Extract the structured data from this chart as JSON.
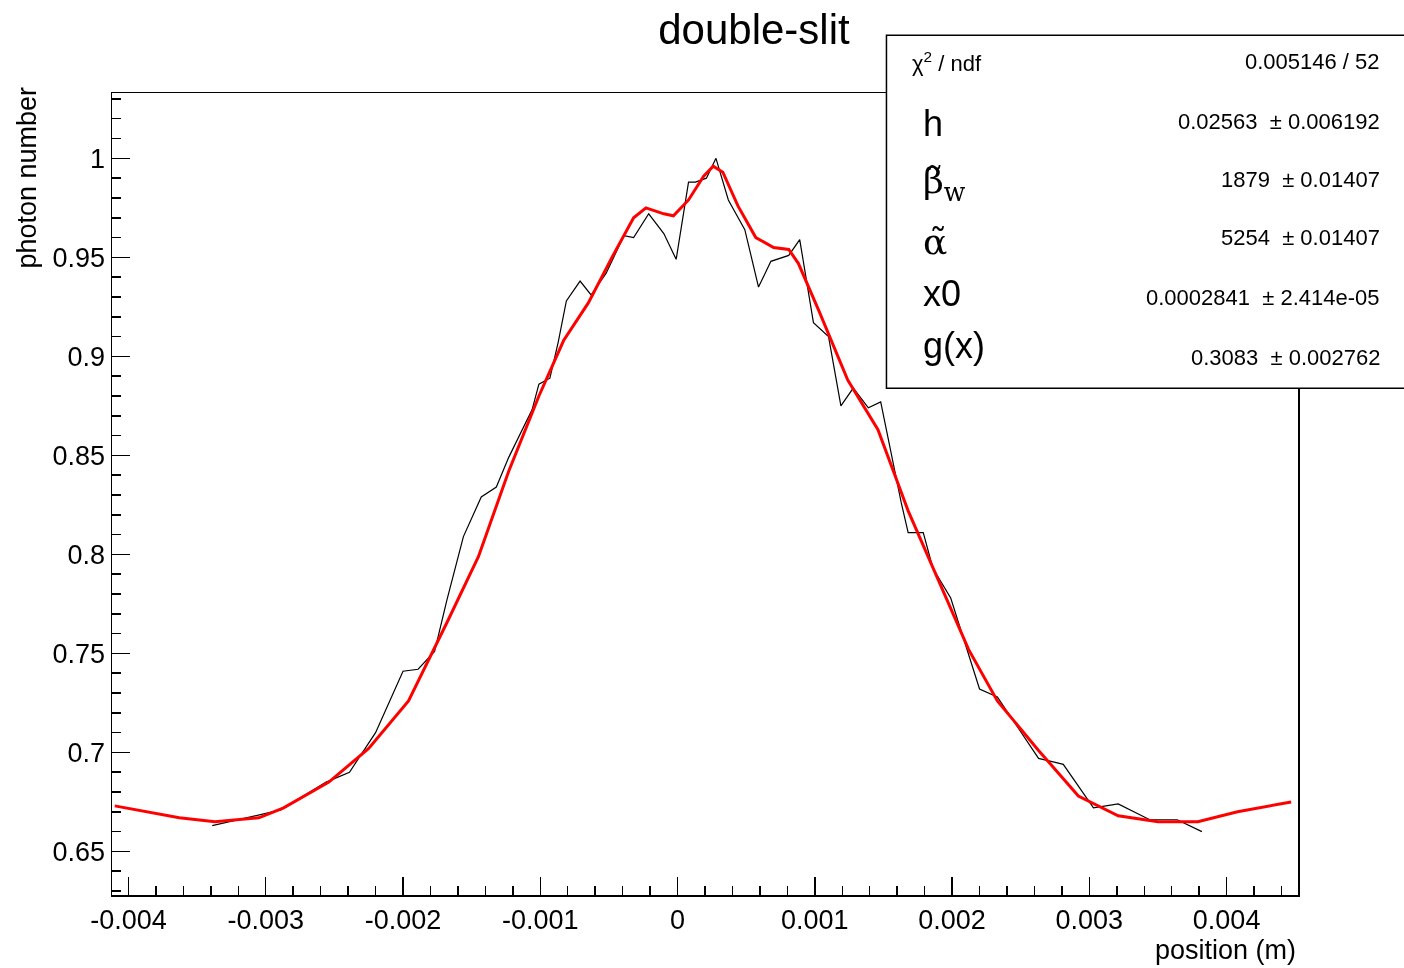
{
  "chart_data": {
    "type": "line",
    "title": "double-slit",
    "xlabel": "position (m)",
    "ylabel": "photon number",
    "xlim": [
      -0.00412,
      0.00452
    ],
    "xticks": [
      -0.004,
      -0.003,
      -0.002,
      -0.001,
      0,
      0.001,
      0.002,
      0.003,
      0.004
    ],
    "ylim": [
      0.628,
      1.033
    ],
    "yticks": [
      0.65,
      0.7,
      0.75,
      0.8,
      0.85,
      0.9,
      0.95,
      1
    ],
    "grid": false,
    "marker": "none",
    "line_style": "solid",
    "series": [
      {
        "color": "#000000",
        "x": [
          -0.00339,
          -0.00289,
          -0.00256,
          -0.00239,
          -0.0022,
          -0.002,
          -0.00189,
          -0.00177,
          -0.00168,
          -0.00156,
          -0.00143,
          -0.00132,
          -0.00123,
          -0.00106,
          -0.00101,
          -0.00093,
          -0.00087,
          -0.00081,
          -0.00071,
          -0.00063,
          -0.00052,
          -0.00039,
          -0.00032,
          -0.00021,
          -0.0001,
          -1e-05,
          8e-05,
          0.00013,
          0.00021,
          0.00028,
          0.00037,
          0.00049,
          0.00059,
          0.00068,
          0.00081,
          0.00089,
          0.00099,
          0.0011,
          0.00119,
          0.00128,
          0.00139,
          0.00148,
          0.00163,
          0.00168,
          0.00179,
          0.00186,
          0.00199,
          0.0022,
          0.00233,
          0.00263,
          0.00281,
          0.00303,
          0.00321,
          0.00344,
          0.00364,
          0.00382
        ],
        "values": [
          0.663,
          0.671,
          0.685,
          0.69,
          0.71,
          0.741,
          0.742,
          0.751,
          0.777,
          0.809,
          0.829,
          0.834,
          0.849,
          0.873,
          0.886,
          0.889,
          0.907,
          0.928,
          0.938,
          0.931,
          0.942,
          0.961,
          0.96,
          0.972,
          0.962,
          0.949,
          0.988,
          0.988,
          0.99,
          1.0,
          0.979,
          0.964,
          0.935,
          0.948,
          0.951,
          0.959,
          0.917,
          0.91,
          0.875,
          0.884,
          0.874,
          0.877,
          0.826,
          0.811,
          0.811,
          0.793,
          0.778,
          0.732,
          0.728,
          0.697,
          0.694,
          0.672,
          0.674,
          0.666,
          0.666,
          0.66
        ]
      },
      {
        "color": "#ff0000",
        "x": [
          -0.0041,
          -0.00363,
          -0.00337,
          -0.00305,
          -0.00287,
          -0.00254,
          -0.00225,
          -0.00196,
          -0.00167,
          -0.00145,
          -0.00123,
          -0.00101,
          -0.00083,
          -0.00065,
          -0.00047,
          -0.00032,
          -0.00023,
          -0.0001,
          -3e-05,
          8e-05,
          0.00019,
          0.00026,
          0.00033,
          0.00044,
          0.00057,
          0.0007,
          0.00081,
          0.00088,
          0.00103,
          0.00124,
          0.00146,
          0.00168,
          0.0019,
          0.00212,
          0.00233,
          0.00263,
          0.00292,
          0.00321,
          0.0035,
          0.00379,
          0.00408,
          0.00447
        ],
        "values": [
          0.673,
          0.667,
          0.665,
          0.667,
          0.672,
          0.685,
          0.702,
          0.726,
          0.767,
          0.799,
          0.842,
          0.88,
          0.908,
          0.927,
          0.951,
          0.97,
          0.975,
          0.972,
          0.971,
          0.979,
          0.991,
          0.996,
          0.993,
          0.976,
          0.96,
          0.955,
          0.954,
          0.947,
          0.923,
          0.888,
          0.863,
          0.822,
          0.787,
          0.752,
          0.726,
          0.701,
          0.678,
          0.668,
          0.665,
          0.665,
          0.67,
          0.675
        ]
      }
    ],
    "annotations": [
      "χ$^{2}$ / ndf",
      "0.005146 / 52",
      "h",
      "0.02563  ± 0.006192",
      "β̃$_{w}$",
      "1879  ± 0.01407",
      "α̃",
      "5254  ± 0.01407",
      "x0",
      "0.0002841  ± 2.414e-05",
      "g(x)",
      "0.3083  ± 0.002762"
    ]
  }
}
